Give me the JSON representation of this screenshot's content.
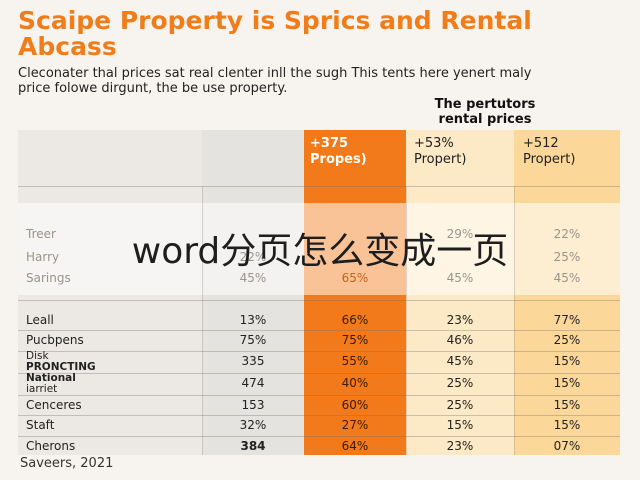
{
  "title_line1": "Scaipe Property is Sprics and Rental",
  "title_line2": "Abcass",
  "subtitle_line1": "Cleconater thal prices sat real clenter inll the sugh This tents here yenert maly",
  "subtitle_line2": "price folowe dirgunt, the be use property.",
  "group_header_line1": "The pertutors",
  "group_header_line2": "rental prices",
  "columns": {
    "orange_line1": "+375",
    "orange_line2": "Propes)",
    "p1_line1": "+53%",
    "p1_line2": "Propert)",
    "p2_line1": "+512",
    "p2_line2": "Propert)"
  },
  "faded_rows": [
    {
      "label": "Treer",
      "n": "",
      "o": "",
      "p1": "29%",
      "p2": "22%"
    },
    {
      "label": "Harry",
      "n": "22%",
      "o": "",
      "p1": "",
      "p2": "25%"
    },
    {
      "label": "Sarings",
      "n": "45%",
      "o": "65%",
      "p1": "45%",
      "p2": "45%"
    }
  ],
  "rows": [
    {
      "label": "Leall",
      "n": "13%",
      "o": "66%",
      "p1": "23%",
      "p2": "77%"
    },
    {
      "label": "Pucbpens",
      "n": "75%",
      "o": "75%",
      "p1": "46%",
      "p2": "25%"
    },
    {
      "label_a": "Disk",
      "label_b": "PRONCTING",
      "n": "335",
      "o": "55%",
      "p1": "45%",
      "p2": "15%"
    },
    {
      "label_a": "National",
      "label_b": "iarriet",
      "n": "474",
      "o": "40%",
      "p1": "25%",
      "p2": "15%"
    },
    {
      "label": "Cenceres",
      "n": "153",
      "o": "60%",
      "p1": "25%",
      "p2": "15%"
    },
    {
      "label": "Staft",
      "n": "32%",
      "o": "27%",
      "p1": "15%",
      "p2": "15%"
    },
    {
      "label": "Cherons",
      "n": "384",
      "o": "64%",
      "p1": "23%",
      "p2": "07%"
    }
  ],
  "watermark": "word分页怎么变成一页",
  "source": "Saveers, 2021",
  "colors": {
    "accent": "#f07d1a",
    "orange_col": "#f27a1a",
    "light_col": "#fce9c6",
    "peach_col": "#fbd79a"
  }
}
